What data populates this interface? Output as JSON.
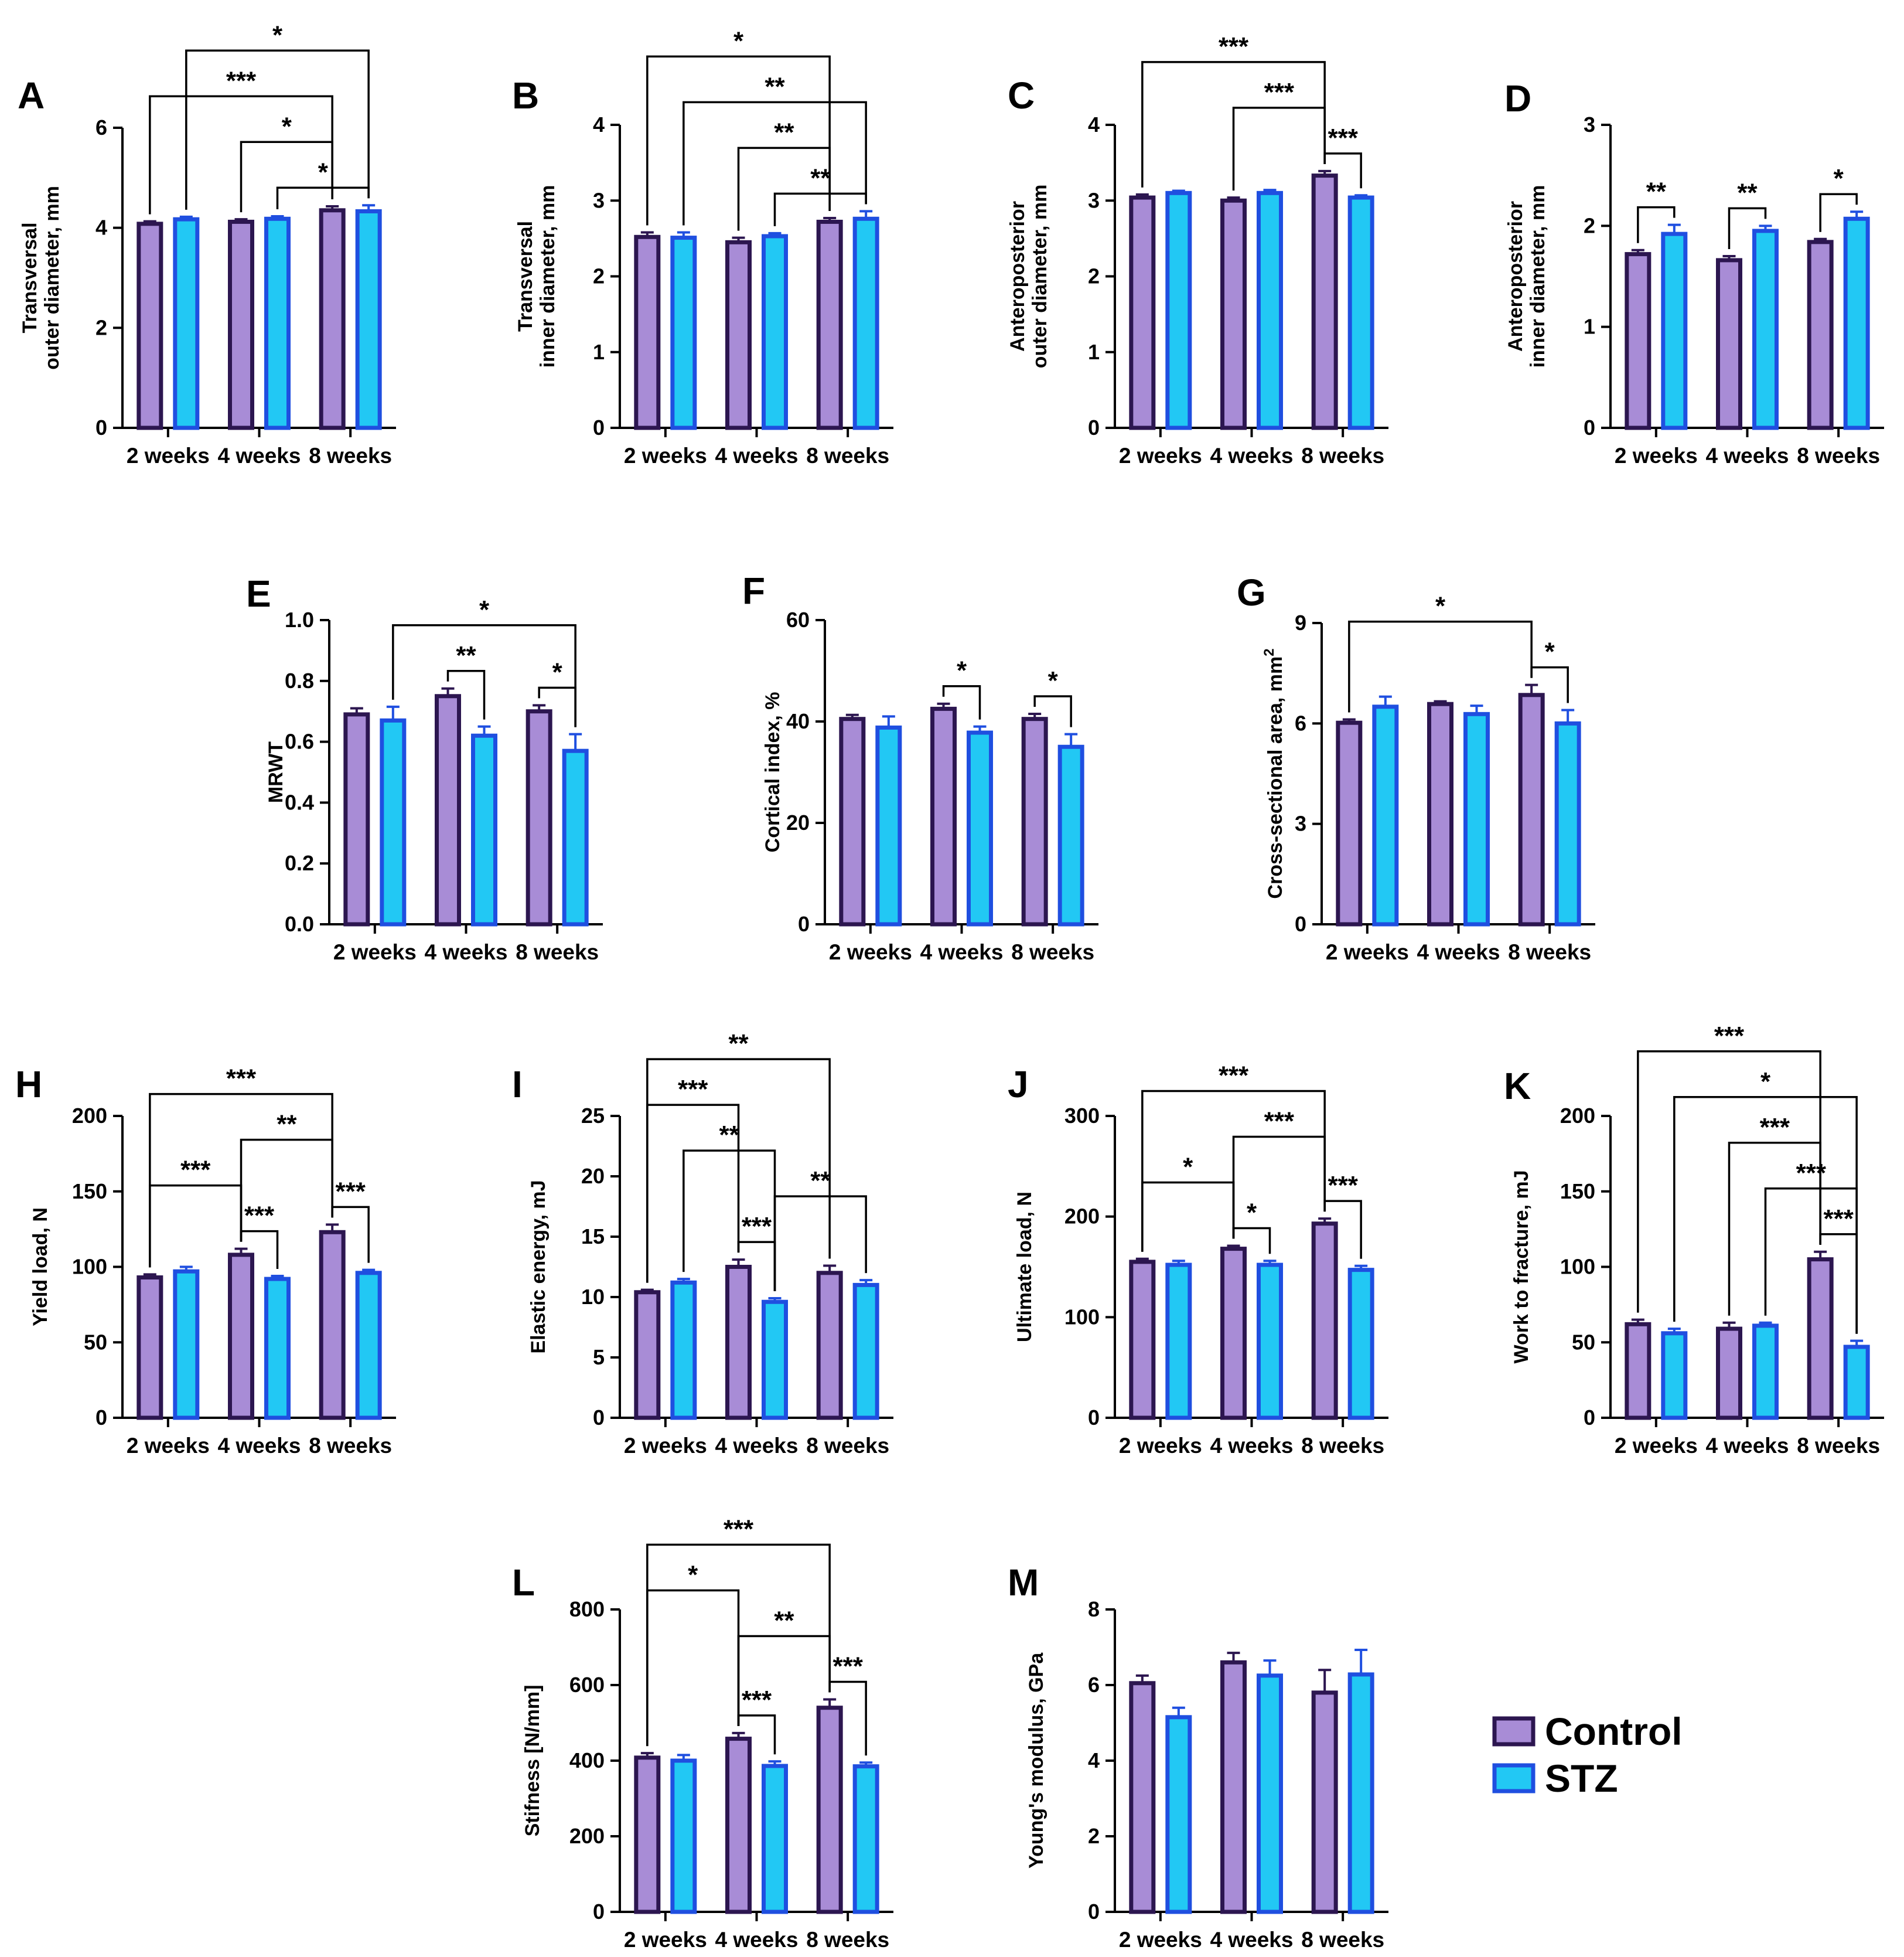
{
  "colors": {
    "control_fill": "#a88cd6",
    "control_stroke": "#2c1650",
    "stz_fill": "#22c8f4",
    "stz_stroke": "#1f4fe0"
  },
  "legend": {
    "control": "Control",
    "stz": "STZ"
  },
  "chart_data": [
    {
      "id": "A",
      "type": "bar",
      "letter": "A",
      "ylabel": "Transversal\nouter diameter, mm",
      "categories": [
        "2 weeks",
        "4 weeks",
        "8 weeks"
      ],
      "ylim": [
        0,
        6
      ],
      "ticks": [
        0,
        2,
        4,
        6
      ],
      "series": [
        {
          "name": "Control",
          "values": [
            4.08,
            4.12,
            4.35
          ],
          "errors": [
            0.05,
            0.05,
            0.08
          ]
        },
        {
          "name": "STZ",
          "values": [
            4.17,
            4.18,
            4.33
          ],
          "errors": [
            0.05,
            0.05,
            0.12
          ]
        }
      ],
      "annotations": [
        {
          "from": "2 weeks.Control",
          "to": "8 weeks.Control",
          "label": "***"
        },
        {
          "from": "2 weeks.STZ",
          "to": "8 weeks.STZ",
          "label": "*"
        },
        {
          "from": "4 weeks.STZ",
          "to": "8 weeks.STZ",
          "label": "*"
        },
        {
          "from": "4 weeks.Control",
          "to": "8 weeks.Control",
          "label": "*"
        }
      ]
    },
    {
      "id": "B",
      "type": "bar",
      "letter": "B",
      "ylabel": "Transversal\ninner diameter, mm",
      "categories": [
        "2 weeks",
        "4 weeks",
        "8 weeks"
      ],
      "ylim": [
        0,
        4
      ],
      "ticks": [
        0,
        1,
        2,
        3,
        4
      ],
      "series": [
        {
          "name": "Control",
          "values": [
            2.52,
            2.45,
            2.72
          ],
          "errors": [
            0.06,
            0.06,
            0.05
          ]
        },
        {
          "name": "STZ",
          "values": [
            2.51,
            2.53,
            2.76
          ],
          "errors": [
            0.07,
            0.04,
            0.1
          ]
        }
      ],
      "annotations": [
        {
          "from": "2 weeks.STZ",
          "to": "8 weeks.STZ",
          "label": "**"
        },
        {
          "from": "2 weeks.Control",
          "to": "8 weeks.Control",
          "label": "*"
        },
        {
          "from": "4 weeks.STZ",
          "to": "8 weeks.STZ",
          "label": "**"
        },
        {
          "from": "4 weeks.Control",
          "to": "8 weeks.Control",
          "label": "**"
        }
      ]
    },
    {
      "id": "C",
      "type": "bar",
      "letter": "C",
      "ylabel": "Anteroposterior\nouter diameter, mm",
      "categories": [
        "2 weeks",
        "4 weeks",
        "8 weeks"
      ],
      "ylim": [
        0,
        4
      ],
      "ticks": [
        0,
        1,
        2,
        3,
        4
      ],
      "series": [
        {
          "name": "Control",
          "values": [
            3.04,
            3.0,
            3.33
          ],
          "errors": [
            0.04,
            0.04,
            0.06
          ]
        },
        {
          "name": "STZ",
          "values": [
            3.1,
            3.1,
            3.04
          ],
          "errors": [
            0.03,
            0.04,
            0.03
          ]
        }
      ],
      "annotations": [
        {
          "from": "2 weeks.Control",
          "to": "8 weeks.Control",
          "label": "***"
        },
        {
          "from": "4 weeks.Control",
          "to": "8 weeks.Control",
          "label": "***"
        },
        {
          "from": "8 weeks.Control",
          "to": "8 weeks.STZ",
          "label": "***"
        }
      ]
    },
    {
      "id": "D",
      "type": "bar",
      "letter": "D",
      "ylabel": "Anteroposterior\ninner diameter, mm",
      "categories": [
        "2 weeks",
        "4 weeks",
        "8 weeks"
      ],
      "ylim": [
        0,
        3
      ],
      "ticks": [
        0,
        1,
        2,
        3
      ],
      "series": [
        {
          "name": "Control",
          "values": [
            1.72,
            1.66,
            1.84
          ],
          "errors": [
            0.04,
            0.04,
            0.03
          ]
        },
        {
          "name": "STZ",
          "values": [
            1.92,
            1.95,
            2.07
          ],
          "errors": [
            0.09,
            0.05,
            0.07
          ]
        }
      ],
      "annotations": [
        {
          "from": "2 weeks.Control",
          "to": "2 weeks.STZ",
          "label": "**"
        },
        {
          "from": "4 weeks.Control",
          "to": "4 weeks.STZ",
          "label": "**"
        },
        {
          "from": "8 weeks.Control",
          "to": "8 weeks.STZ",
          "label": "*"
        }
      ]
    },
    {
      "id": "E",
      "type": "bar",
      "letter": "E",
      "ylabel": "MRWT",
      "categories": [
        "2 weeks",
        "4 weeks",
        "8 weeks"
      ],
      "ylim": [
        0,
        1
      ],
      "ticks": [
        0,
        0.2,
        0.4,
        0.6,
        0.8,
        1.0
      ],
      "tick_decimals": 1,
      "series": [
        {
          "name": "Control",
          "values": [
            0.69,
            0.75,
            0.7
          ],
          "errors": [
            0.02,
            0.025,
            0.02
          ]
        },
        {
          "name": "STZ",
          "values": [
            0.67,
            0.62,
            0.57
          ],
          "errors": [
            0.045,
            0.03,
            0.055
          ]
        }
      ],
      "annotations": [
        {
          "from": "2 weeks.STZ",
          "to": "8 weeks.STZ",
          "label": "*"
        },
        {
          "from": "4 weeks.Control",
          "to": "4 weeks.STZ",
          "label": "**"
        },
        {
          "from": "8 weeks.Control",
          "to": "8 weeks.STZ",
          "label": "*"
        }
      ]
    },
    {
      "id": "F",
      "type": "bar",
      "letter": "F",
      "ylabel": "Cortical index, %",
      "categories": [
        "2 weeks",
        "4 weeks",
        "8 weeks"
      ],
      "ylim": [
        0,
        60
      ],
      "ticks": [
        0,
        20,
        40,
        60
      ],
      "series": [
        {
          "name": "Control",
          "values": [
            40.5,
            42.5,
            40.5
          ],
          "errors": [
            0.8,
            1.0,
            1.0
          ]
        },
        {
          "name": "STZ",
          "values": [
            38.8,
            37.8,
            35.0
          ],
          "errors": [
            2.2,
            1.2,
            2.5
          ]
        }
      ],
      "annotations": [
        {
          "from": "4 weeks.Control",
          "to": "4 weeks.STZ",
          "label": "*"
        },
        {
          "from": "8 weeks.Control",
          "to": "8 weeks.STZ",
          "label": "*"
        }
      ]
    },
    {
      "id": "G",
      "type": "bar",
      "letter": "G",
      "ylabel": "Cross-sectional area, mm",
      "ylabel_sup": "2",
      "categories": [
        "2 weeks",
        "4 weeks",
        "8 weeks"
      ],
      "ylim": [
        0,
        9
      ],
      "ticks": [
        0,
        3,
        6,
        9
      ],
      "series": [
        {
          "name": "Control",
          "values": [
            6.02,
            6.58,
            6.85
          ],
          "errors": [
            0.1,
            0.08,
            0.3
          ]
        },
        {
          "name": "STZ",
          "values": [
            6.5,
            6.28,
            6.0
          ],
          "errors": [
            0.3,
            0.25,
            0.4
          ]
        }
      ],
      "annotations": [
        {
          "from": "2 weeks.Control",
          "to": "8 weeks.Control",
          "label": "*"
        },
        {
          "from": "8 weeks.Control",
          "to": "8 weeks.STZ",
          "label": "*"
        }
      ]
    },
    {
      "id": "H",
      "type": "bar",
      "letter": "H",
      "ylabel": "Yield load, N",
      "categories": [
        "2 weeks",
        "4 weeks",
        "8 weeks"
      ],
      "ylim": [
        0,
        200
      ],
      "ticks": [
        0,
        50,
        100,
        150,
        200
      ],
      "series": [
        {
          "name": "Control",
          "values": [
            93,
            108,
            123
          ],
          "errors": [
            2,
            4,
            5
          ]
        },
        {
          "name": "STZ",
          "values": [
            97,
            92,
            96
          ],
          "errors": [
            3,
            2,
            2
          ]
        }
      ],
      "annotations": [
        {
          "from": "2 weeks.Control",
          "to": "8 weeks.Control",
          "label": "***"
        },
        {
          "from": "4 weeks.Control",
          "to": "8 weeks.Control",
          "label": "**"
        },
        {
          "from": "2 weeks.Control",
          "to": "4 weeks.Control",
          "label": "***"
        },
        {
          "from": "4 weeks.Control",
          "to": "4 weeks.STZ",
          "label": "***"
        },
        {
          "from": "8 weeks.Control",
          "to": "8 weeks.STZ",
          "label": "***"
        }
      ]
    },
    {
      "id": "I",
      "type": "bar",
      "letter": "I",
      "ylabel": "Elastic energy, mJ",
      "categories": [
        "2 weeks",
        "4 weeks",
        "8 weeks"
      ],
      "ylim": [
        0,
        25
      ],
      "ticks": [
        0,
        5,
        10,
        15,
        20,
        25
      ],
      "series": [
        {
          "name": "Control",
          "values": [
            10.4,
            12.5,
            12.0
          ],
          "errors": [
            0.2,
            0.6,
            0.6
          ]
        },
        {
          "name": "STZ",
          "values": [
            11.2,
            9.6,
            11.0
          ],
          "errors": [
            0.3,
            0.3,
            0.4
          ]
        }
      ],
      "annotations": [
        {
          "from": "2 weeks.Control",
          "to": "8 weeks.Control",
          "label": "**"
        },
        {
          "from": "2 weeks.STZ",
          "to": "4 weeks.STZ",
          "label": "**"
        },
        {
          "from": "2 weeks.Control",
          "to": "4 weeks.Control",
          "label": "***"
        },
        {
          "from": "4 weeks.Control",
          "to": "4 weeks.STZ",
          "label": "***"
        },
        {
          "from": "4 weeks.STZ",
          "to": "8 weeks.STZ",
          "label": "**"
        }
      ]
    },
    {
      "id": "J",
      "type": "bar",
      "letter": "J",
      "ylabel": "Ultimate load, N",
      "categories": [
        "2 weeks",
        "4 weeks",
        "8 weeks"
      ],
      "ylim": [
        0,
        300
      ],
      "ticks": [
        0,
        100,
        200,
        300
      ],
      "series": [
        {
          "name": "Control",
          "values": [
            155,
            168,
            193
          ],
          "errors": [
            3,
            3,
            5
          ]
        },
        {
          "name": "STZ",
          "values": [
            152,
            152,
            147
          ],
          "errors": [
            4,
            4,
            4
          ]
        }
      ],
      "annotations": [
        {
          "from": "2 weeks.Control",
          "to": "8 weeks.Control",
          "label": "***"
        },
        {
          "from": "4 weeks.Control",
          "to": "8 weeks.Control",
          "label": "***"
        },
        {
          "from": "2 weeks.Control",
          "to": "4 weeks.Control",
          "label": "*"
        },
        {
          "from": "4 weeks.Control",
          "to": "4 weeks.STZ",
          "label": "*"
        },
        {
          "from": "8 weeks.Control",
          "to": "8 weeks.STZ",
          "label": "***"
        }
      ]
    },
    {
      "id": "K",
      "type": "bar",
      "letter": "K",
      "ylabel": "Work to fracture, mJ",
      "categories": [
        "2 weeks",
        "4 weeks",
        "8 weeks"
      ],
      "ylim": [
        0,
        200
      ],
      "ticks": [
        0,
        50,
        100,
        150,
        200
      ],
      "series": [
        {
          "name": "Control",
          "values": [
            62,
            59,
            105
          ],
          "errors": [
            3,
            4,
            5
          ]
        },
        {
          "name": "STZ",
          "values": [
            56,
            61,
            47
          ],
          "errors": [
            3,
            2,
            4
          ]
        }
      ],
      "annotations": [
        {
          "from": "2 weeks.STZ",
          "to": "8 weeks.STZ",
          "label": "*"
        },
        {
          "from": "2 weeks.Control",
          "to": "8 weeks.Control",
          "label": "***"
        },
        {
          "from": "4 weeks.STZ",
          "to": "8 weeks.STZ",
          "label": "***"
        },
        {
          "from": "4 weeks.Control",
          "to": "8 weeks.Control",
          "label": "***"
        },
        {
          "from": "8 weeks.Control",
          "to": "8 weeks.STZ",
          "label": "***"
        }
      ]
    },
    {
      "id": "L",
      "type": "bar",
      "letter": "L",
      "ylabel": "Stifness [N/mm]",
      "categories": [
        "2 weeks",
        "4 weeks",
        "8 weeks"
      ],
      "ylim": [
        0,
        800
      ],
      "ticks": [
        0,
        200,
        400,
        600,
        800
      ],
      "series": [
        {
          "name": "Control",
          "values": [
            408,
            458,
            540
          ],
          "errors": [
            12,
            15,
            22
          ]
        },
        {
          "name": "STZ",
          "values": [
            400,
            386,
            385
          ],
          "errors": [
            15,
            12,
            10
          ]
        }
      ],
      "annotations": [
        {
          "from": "2 weeks.Control",
          "to": "8 weeks.Control",
          "label": "***"
        },
        {
          "from": "4 weeks.Control",
          "to": "8 weeks.Control",
          "label": "**"
        },
        {
          "from": "2 weeks.Control",
          "to": "4 weeks.Control",
          "label": "*"
        },
        {
          "from": "4 weeks.Control",
          "to": "4 weeks.STZ",
          "label": "***"
        },
        {
          "from": "8 weeks.Control",
          "to": "8 weeks.STZ",
          "label": "***"
        }
      ]
    },
    {
      "id": "M",
      "type": "bar",
      "letter": "M",
      "ylabel": "Young's modulus, GPa",
      "categories": [
        "2 weeks",
        "4 weeks",
        "8 weeks"
      ],
      "ylim": [
        0,
        8
      ],
      "ticks": [
        0,
        2,
        4,
        6,
        8
      ],
      "series": [
        {
          "name": "Control",
          "values": [
            6.05,
            6.6,
            5.8
          ],
          "errors": [
            0.2,
            0.25,
            0.6
          ]
        },
        {
          "name": "STZ",
          "values": [
            5.15,
            6.25,
            6.28
          ],
          "errors": [
            0.25,
            0.4,
            0.65
          ]
        }
      ],
      "annotations": []
    }
  ]
}
